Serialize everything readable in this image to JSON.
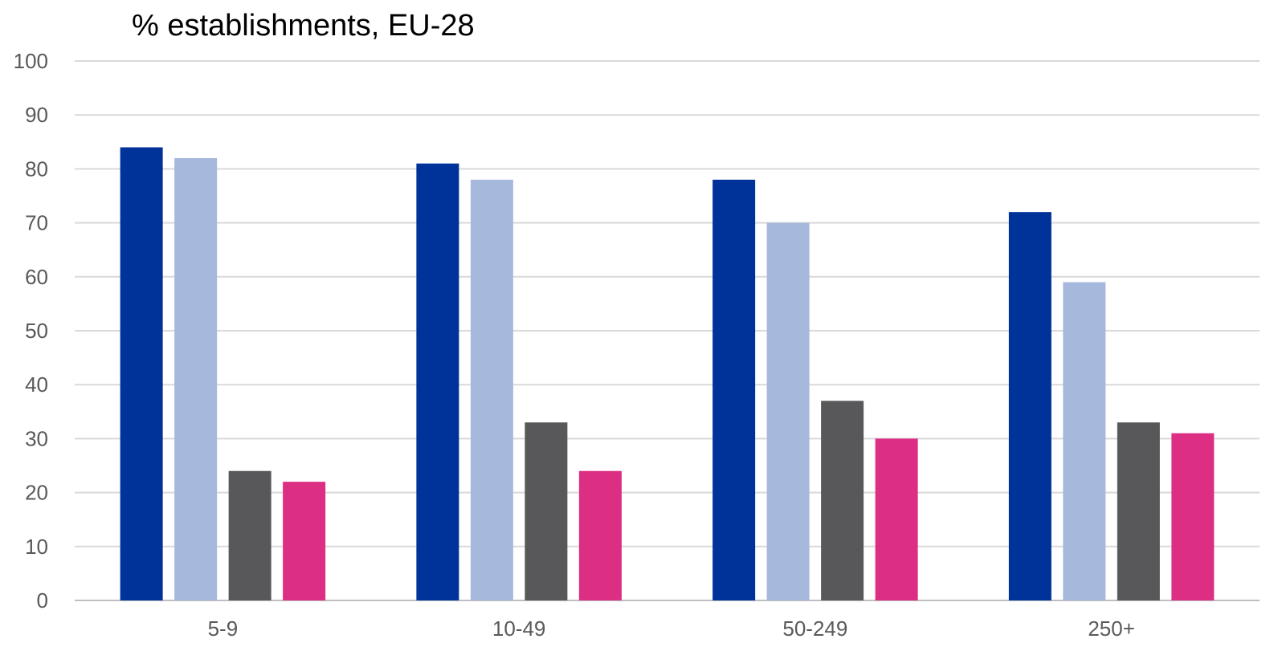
{
  "chart_data": {
    "type": "bar",
    "title": "% establishments, EU-28",
    "xlabel": "",
    "ylabel": "",
    "categories": [
      "5-9",
      "10-49",
      "50-249",
      "250+"
    ],
    "series": [
      {
        "color": "#003399",
        "values": [
          84,
          81,
          78,
          72
        ]
      },
      {
        "color": "#A6B8DC",
        "values": [
          82,
          78,
          70,
          59
        ]
      },
      {
        "color": "#58585A",
        "values": [
          24,
          33,
          37,
          33
        ]
      },
      {
        "color": "#DC2F83",
        "values": [
          22,
          24,
          30,
          31
        ]
      }
    ],
    "ylim": [
      0,
      100
    ],
    "yticks": [
      "0",
      "10",
      "20",
      "30",
      "40",
      "50",
      "60",
      "70",
      "80",
      "90",
      "100"
    ],
    "grid": true,
    "legend": "none"
  }
}
